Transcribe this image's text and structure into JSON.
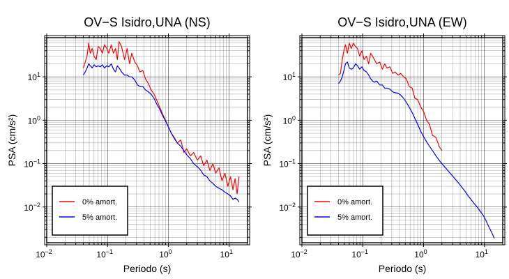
{
  "chart_data": [
    {
      "type": "line",
      "title": "OV−S Isidro,UNA (NS)",
      "xlabel": "Periodo (s)",
      "ylabel": "PSA (cm/s²)",
      "x_scale": "log",
      "y_scale": "log",
      "xlim": [
        0.01,
        20
      ],
      "ylim": [
        0.0015,
        80
      ],
      "grid": true,
      "legend_position": "bottom-left",
      "x_ticks": [
        {
          "value": 0.01,
          "base": "10",
          "exp": "−2"
        },
        {
          "value": 0.1,
          "base": "10",
          "exp": "−1"
        },
        {
          "value": 1,
          "base": "10",
          "exp": "0"
        },
        {
          "value": 10,
          "base": "10",
          "exp": "1"
        }
      ],
      "y_ticks": [
        {
          "value": 0.01,
          "base": "10",
          "exp": "−2"
        },
        {
          "value": 0.1,
          "base": "10",
          "exp": "−1"
        },
        {
          "value": 1,
          "base": "10",
          "exp": "0"
        },
        {
          "value": 10,
          "base": "10",
          "exp": "1"
        }
      ],
      "series": [
        {
          "name": "0% amort.",
          "color": "#ff0000",
          "x": [
            0.04,
            0.043,
            0.046,
            0.049,
            0.052,
            0.056,
            0.06,
            0.065,
            0.07,
            0.076,
            0.082,
            0.089,
            0.097,
            0.105,
            0.115,
            0.125,
            0.135,
            0.145,
            0.155,
            0.17,
            0.19,
            0.21,
            0.23,
            0.25,
            0.28,
            0.31,
            0.34,
            0.38,
            0.42,
            0.47,
            0.52,
            0.58,
            0.65,
            0.72,
            0.8,
            0.9,
            1.0,
            1.12,
            1.25,
            1.4,
            1.6,
            1.8,
            2.0,
            2.3,
            2.6,
            3.0,
            3.4,
            3.8,
            4.3,
            4.8,
            5.4,
            6.0,
            6.8,
            7.6,
            8.5,
            9.5,
            10.5,
            11.5,
            12.5,
            13.5,
            14.5
          ],
          "y": [
            16,
            22,
            30,
            60,
            35,
            45,
            30,
            25,
            50,
            45,
            35,
            55,
            45,
            35,
            55,
            35,
            45,
            25,
            65,
            50,
            25,
            45,
            20,
            35,
            22,
            18,
            13,
            14,
            9,
            7,
            5,
            4,
            2.8,
            2.0,
            1.4,
            1.0,
            0.7,
            0.5,
            0.4,
            0.3,
            0.35,
            0.18,
            0.22,
            0.15,
            0.18,
            0.12,
            0.15,
            0.09,
            0.12,
            0.07,
            0.1,
            0.06,
            0.08,
            0.04,
            0.06,
            0.03,
            0.05,
            0.025,
            0.045,
            0.02,
            0.05
          ]
        },
        {
          "name": "5% amort.",
          "color": "#0000ff",
          "x": [
            0.04,
            0.043,
            0.046,
            0.049,
            0.052,
            0.056,
            0.06,
            0.065,
            0.07,
            0.076,
            0.082,
            0.089,
            0.097,
            0.105,
            0.115,
            0.125,
            0.135,
            0.145,
            0.155,
            0.17,
            0.19,
            0.21,
            0.23,
            0.25,
            0.28,
            0.31,
            0.34,
            0.38,
            0.42,
            0.47,
            0.52,
            0.58,
            0.65,
            0.72,
            0.8,
            0.9,
            1.0,
            1.12,
            1.25,
            1.4,
            1.6,
            1.8,
            2.0,
            2.3,
            2.6,
            3.0,
            3.4,
            3.8,
            4.3,
            4.8,
            5.4,
            6.0,
            6.8,
            7.6,
            8.5,
            9.5,
            10.5,
            11.5,
            12.5,
            13.5,
            14.5
          ],
          "y": [
            11,
            13,
            16,
            20,
            18,
            16,
            19,
            17,
            18,
            17,
            19,
            16,
            18,
            17,
            20,
            15,
            13,
            18,
            16,
            13,
            11,
            11,
            10,
            10,
            8.5,
            6.5,
            6,
            6,
            5,
            4.5,
            4,
            3.2,
            2.3,
            1.8,
            1.3,
            0.95,
            0.7,
            0.5,
            0.38,
            0.3,
            0.25,
            0.2,
            0.16,
            0.13,
            0.1,
            0.085,
            0.07,
            0.055,
            0.05,
            0.04,
            0.035,
            0.03,
            0.027,
            0.025,
            0.022,
            0.02,
            0.018,
            0.015,
            0.016,
            0.015,
            0.013
          ]
        }
      ]
    },
    {
      "type": "line",
      "title": "OV−S Isidro,UNA (EW)",
      "xlabel": "Periodo (s)",
      "ylabel": "PSA (cm/s²)",
      "x_scale": "log",
      "y_scale": "log",
      "xlim": [
        0.01,
        20
      ],
      "ylim": [
        0.0015,
        80
      ],
      "grid": true,
      "legend_position": "bottom-left",
      "x_ticks": [
        {
          "value": 0.01,
          "base": "10",
          "exp": "−2"
        },
        {
          "value": 0.1,
          "base": "10",
          "exp": "−1"
        },
        {
          "value": 1,
          "base": "10",
          "exp": "0"
        },
        {
          "value": 10,
          "base": "10",
          "exp": "1"
        }
      ],
      "y_ticks": [
        {
          "value": 0.01,
          "base": "10",
          "exp": "−2"
        },
        {
          "value": 0.1,
          "base": "10",
          "exp": "−1"
        },
        {
          "value": 1,
          "base": "10",
          "exp": "0"
        },
        {
          "value": 10,
          "base": "10",
          "exp": "1"
        }
      ],
      "series": [
        {
          "name": "0% amort.",
          "color": "#ff0000",
          "x": [
            0.04,
            0.043,
            0.046,
            0.049,
            0.052,
            0.056,
            0.06,
            0.065,
            0.07,
            0.076,
            0.082,
            0.089,
            0.097,
            0.105,
            0.115,
            0.125,
            0.135,
            0.145,
            0.155,
            0.17,
            0.19,
            0.21,
            0.23,
            0.25,
            0.28,
            0.31,
            0.34,
            0.38,
            0.42,
            0.47,
            0.52,
            0.58,
            0.65,
            0.72,
            0.8,
            0.9,
            1.0,
            1.12,
            1.25,
            1.4,
            1.6,
            1.8,
            2.0
          ],
          "y": [
            11,
            12,
            25,
            40,
            55,
            35,
            60,
            45,
            60,
            50,
            45,
            30,
            40,
            25,
            30,
            20,
            35,
            30,
            25,
            20,
            22,
            15,
            20,
            16,
            17,
            12,
            13,
            11,
            12,
            10,
            9,
            6,
            5.5,
            3.2,
            3.0,
            2.0,
            1.6,
            1.0,
            0.8,
            0.45,
            0.4,
            0.25,
            0.2
          ]
        },
        {
          "name": "5% amort.",
          "color": "#0000ff",
          "x": [
            0.04,
            0.043,
            0.046,
            0.049,
            0.052,
            0.056,
            0.06,
            0.065,
            0.07,
            0.076,
            0.082,
            0.089,
            0.097,
            0.105,
            0.115,
            0.125,
            0.135,
            0.145,
            0.155,
            0.17,
            0.19,
            0.21,
            0.23,
            0.25,
            0.28,
            0.31,
            0.34,
            0.38,
            0.42,
            0.47,
            0.52,
            0.58,
            0.65,
            0.72,
            0.8,
            0.9,
            1.0,
            1.12,
            1.25,
            1.4,
            1.6,
            1.8,
            2.0,
            2.3,
            2.6,
            3.0,
            3.4,
            3.8,
            4.3,
            4.8,
            5.4,
            6.0,
            6.8,
            7.6,
            8.5,
            9.5,
            10.5,
            11.5,
            12.5,
            13.5,
            14.5
          ],
          "y": [
            7,
            8,
            10,
            14,
            20,
            22,
            16,
            15,
            16,
            20,
            18,
            15,
            17,
            14,
            13,
            11,
            9,
            8,
            7.5,
            8,
            6.5,
            6.5,
            5.5,
            5.5,
            5.2,
            4.5,
            4.3,
            4.2,
            3.8,
            3.2,
            2.6,
            2.0,
            1.5,
            1.1,
            0.8,
            0.55,
            0.42,
            0.32,
            0.25,
            0.2,
            0.15,
            0.12,
            0.1,
            0.08,
            0.065,
            0.052,
            0.042,
            0.035,
            0.028,
            0.023,
            0.018,
            0.015,
            0.012,
            0.01,
            0.008,
            0.0065,
            0.005,
            0.0038,
            0.003,
            0.0024,
            0.0019
          ]
        }
      ]
    }
  ]
}
